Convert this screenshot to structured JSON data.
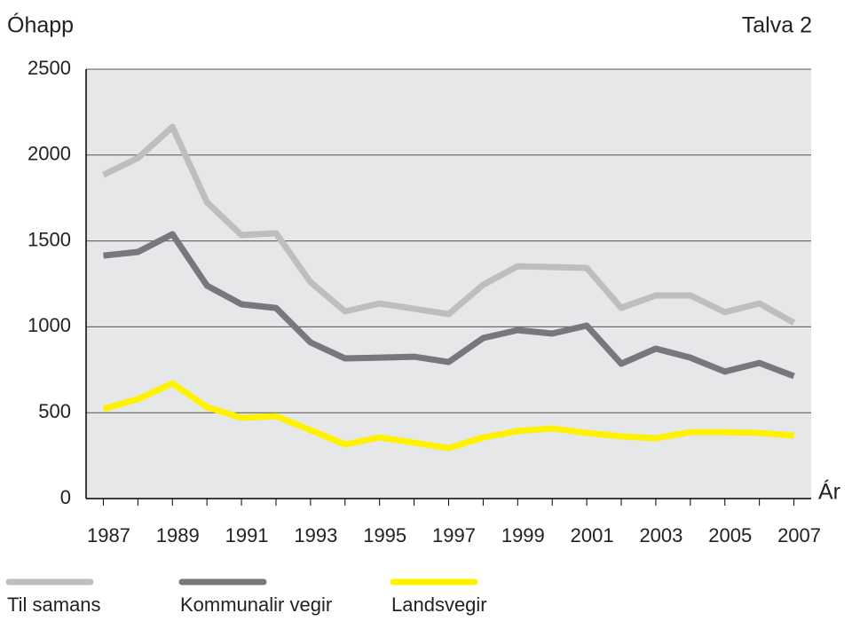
{
  "chart_data": {
    "type": "line",
    "y_label": "Óhapp",
    "annotation": "Talva 2",
    "x_label": "Ár",
    "categories": [
      "1987",
      null,
      "1989",
      null,
      "1991",
      null,
      "1993",
      null,
      "1995",
      null,
      "1997",
      null,
      "1999",
      null,
      "2001",
      null,
      "2003",
      null,
      "2005",
      null,
      "2007"
    ],
    "series": [
      {
        "name": "Til samans",
        "color": "#bdbec0",
        "values": [
          1885,
          1983,
          2164,
          1725,
          1534,
          1545,
          1260,
          1090,
          1136,
          1105,
          1074,
          1245,
          1353,
          1348,
          1343,
          1110,
          1183,
          1183,
          1085,
          1136,
          1023
        ]
      },
      {
        "name": "Kommunalir vegir",
        "color": "#77787b",
        "values": [
          1415,
          1436,
          1539,
          1240,
          1131,
          1110,
          909,
          816,
          821,
          826,
          795,
          935,
          981,
          961,
          1007,
          785,
          873,
          821,
          739,
          790,
          713
        ]
      },
      {
        "name": "Landsvegir",
        "color": "#fff200",
        "values": [
          522,
          579,
          671,
          532,
          470,
          480,
          398,
          315,
          356,
          325,
          294,
          356,
          393,
          408,
          382,
          362,
          351,
          387,
          387,
          382,
          367
        ]
      }
    ],
    "ylim": [
      0,
      2500
    ],
    "yticks": [
      0,
      500,
      1000,
      1500,
      2000,
      2500
    ],
    "grid": true
  }
}
